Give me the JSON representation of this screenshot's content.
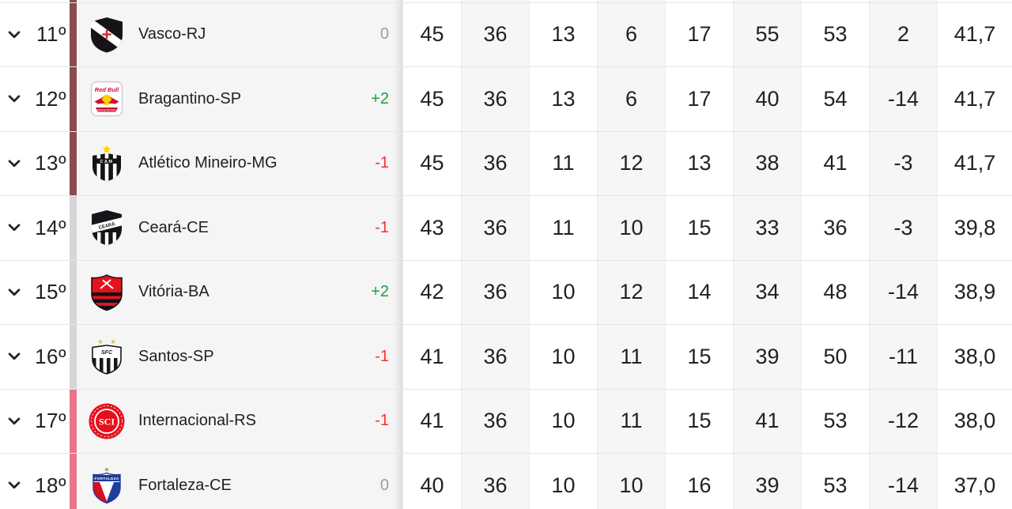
{
  "table": {
    "partial_top_row": {
      "zone": "maroon"
    },
    "rows": [
      {
        "position": "11º",
        "team": "Vasco-RJ",
        "crest": "vasco",
        "zone": "maroon",
        "change": "0",
        "change_dir": "zero",
        "stats": [
          "45",
          "36",
          "13",
          "6",
          "17",
          "55",
          "53",
          "2",
          "41,7"
        ]
      },
      {
        "position": "12º",
        "team": "Bragantino-SP",
        "crest": "bragantino",
        "zone": "maroon",
        "change": "+2",
        "change_dir": "up",
        "stats": [
          "45",
          "36",
          "13",
          "6",
          "17",
          "40",
          "54",
          "-14",
          "41,7"
        ]
      },
      {
        "position": "13º",
        "team": "Atlético Mineiro-MG",
        "crest": "atletico-mineiro",
        "zone": "maroon",
        "change": "-1",
        "change_dir": "down",
        "stats": [
          "45",
          "36",
          "11",
          "12",
          "13",
          "38",
          "41",
          "-3",
          "41,7"
        ]
      },
      {
        "position": "14º",
        "team": "Ceará-CE",
        "crest": "ceara",
        "zone": "gray",
        "change": "-1",
        "change_dir": "down",
        "stats": [
          "43",
          "36",
          "11",
          "10",
          "15",
          "33",
          "36",
          "-3",
          "39,8"
        ]
      },
      {
        "position": "15º",
        "team": "Vitória-BA",
        "crest": "vitoria",
        "zone": "gray",
        "change": "+2",
        "change_dir": "up",
        "stats": [
          "42",
          "36",
          "10",
          "12",
          "14",
          "34",
          "48",
          "-14",
          "38,9"
        ]
      },
      {
        "position": "16º",
        "team": "Santos-SP",
        "crest": "santos",
        "zone": "gray",
        "change": "-1",
        "change_dir": "down",
        "stats": [
          "41",
          "36",
          "10",
          "11",
          "15",
          "39",
          "50",
          "-11",
          "38,0"
        ]
      },
      {
        "position": "17º",
        "team": "Internacional-RS",
        "crest": "internacional",
        "zone": "pink",
        "change": "-1",
        "change_dir": "down",
        "stats": [
          "41",
          "36",
          "10",
          "11",
          "15",
          "41",
          "53",
          "-12",
          "38,0"
        ]
      },
      {
        "position": "18º",
        "team": "Fortaleza-CE",
        "crest": "fortaleza",
        "zone": "pink",
        "change": "0",
        "change_dir": "zero",
        "stats": [
          "40",
          "36",
          "10",
          "10",
          "16",
          "39",
          "53",
          "-14",
          "37,0"
        ]
      }
    ]
  },
  "colors": {
    "zone_maroon": "#8b4b4f",
    "zone_gray": "#d6d6d6",
    "zone_pink": "#e8758c",
    "change_up": "#18a338",
    "change_down": "#f23130",
    "change_zero": "#9e9e9e",
    "text": "#212121"
  },
  "icons": {
    "row_expander": "chevron-down-icon"
  }
}
